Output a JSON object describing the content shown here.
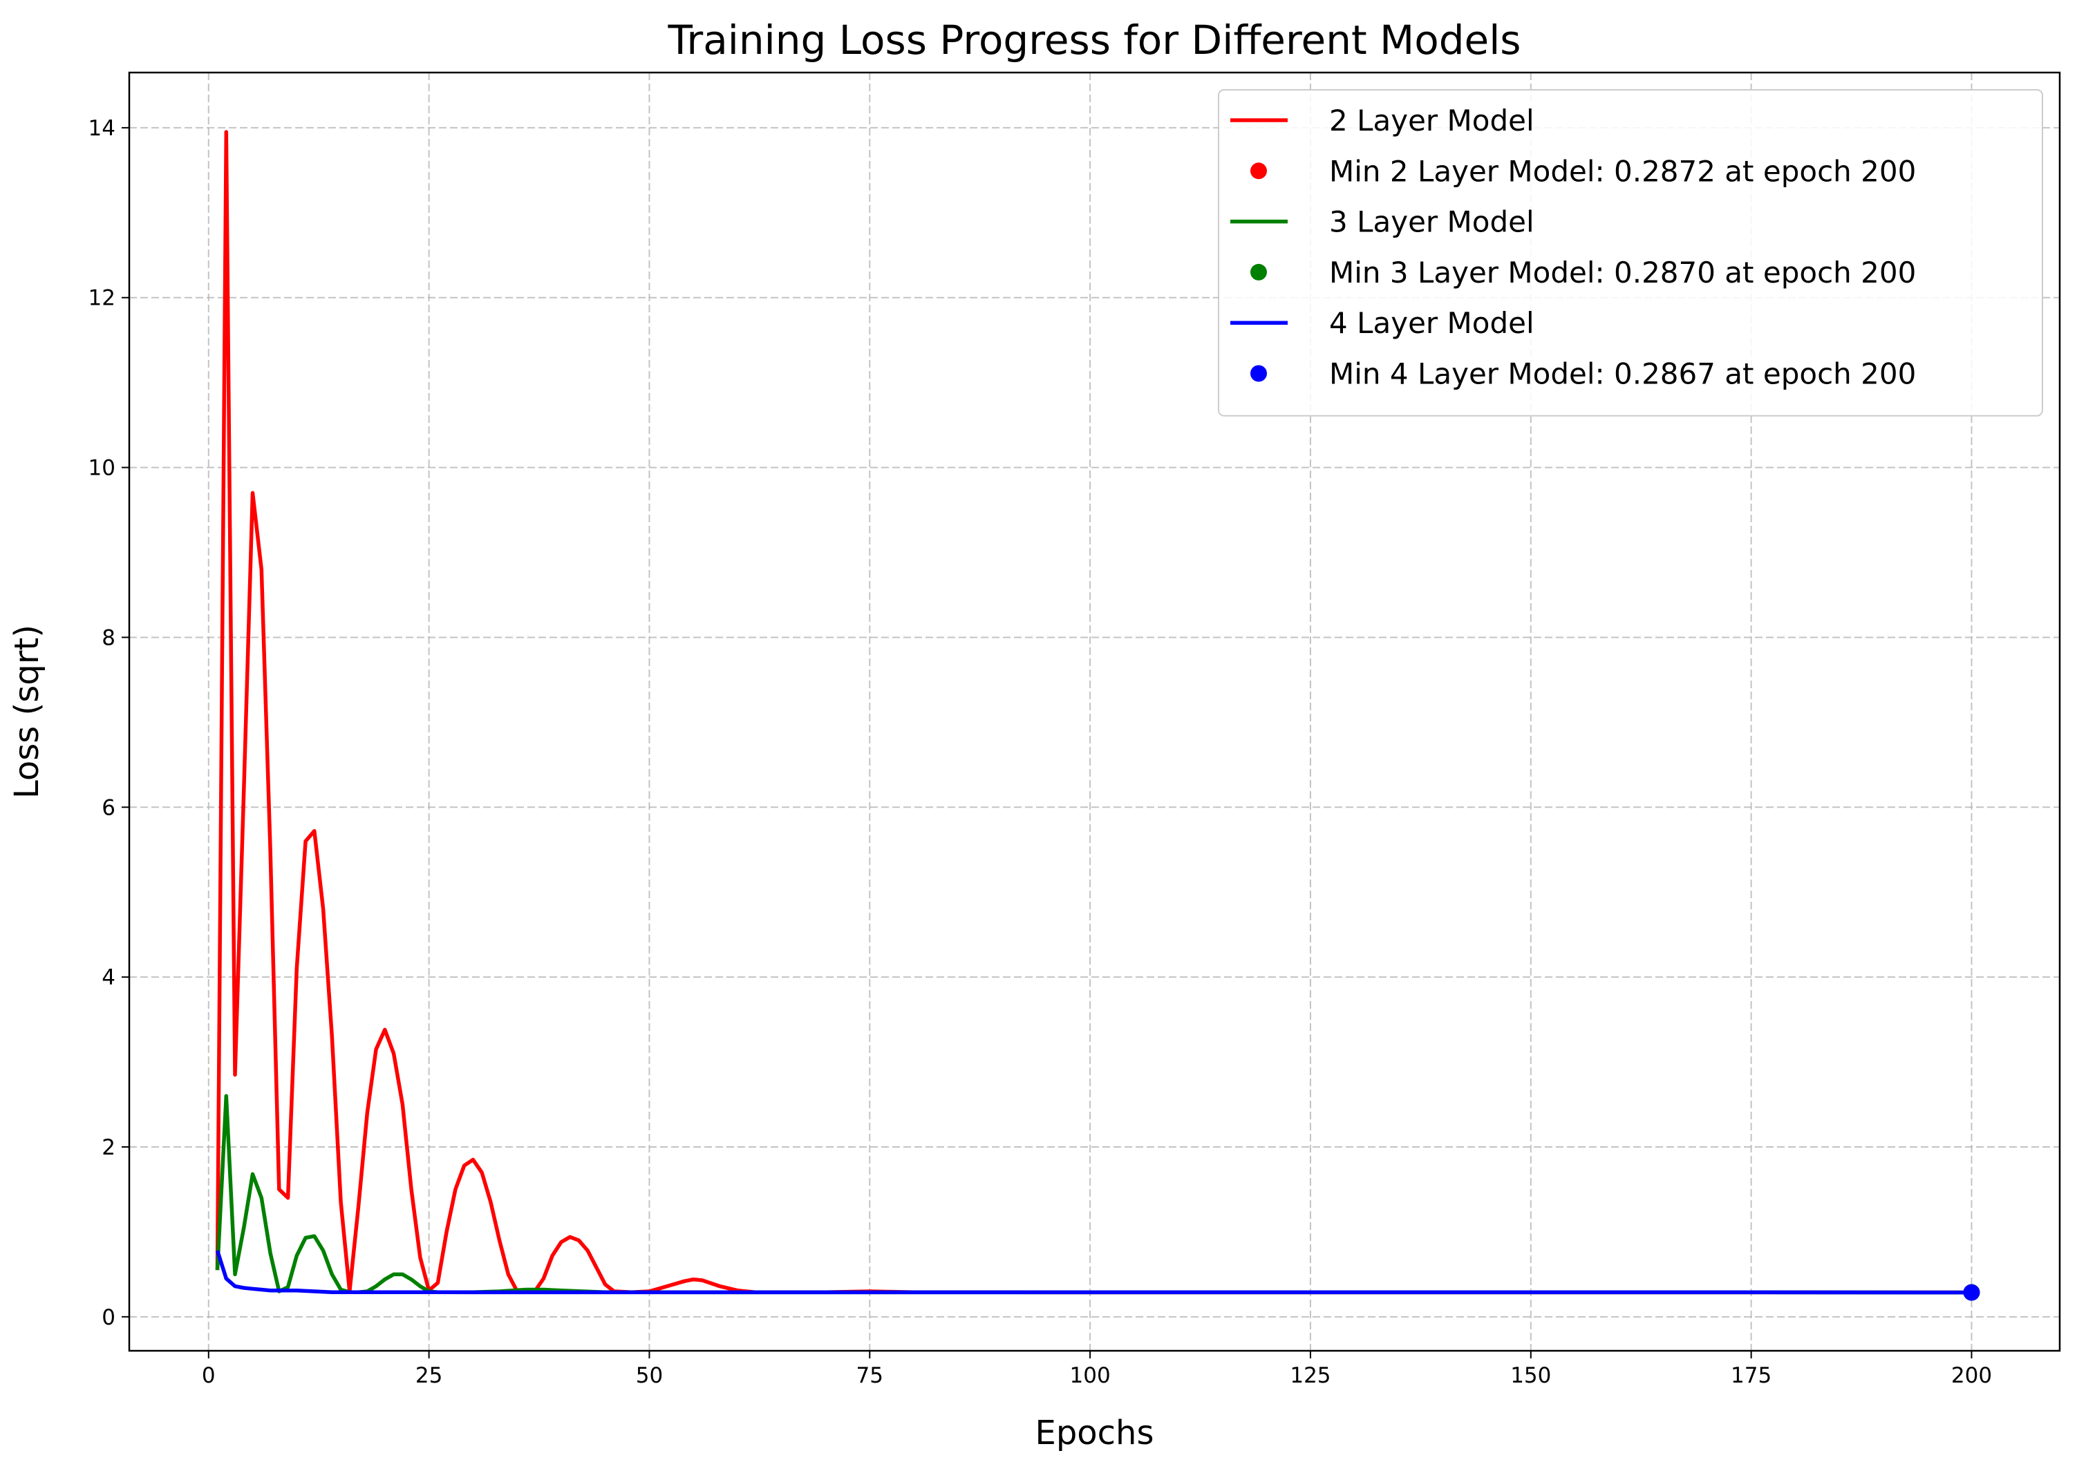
{
  "chart_data": {
    "type": "line",
    "title": "Training Loss Progress for Different Models",
    "xlabel": "Epochs",
    "ylabel": "Loss (sqrt)",
    "xlim": [
      -9,
      210
    ],
    "ylim": [
      -0.4,
      14.65
    ],
    "xticks": [
      0,
      25,
      50,
      75,
      100,
      125,
      150,
      175,
      200
    ],
    "yticks": [
      0,
      2,
      4,
      6,
      8,
      10,
      12,
      14
    ],
    "grid": true,
    "legend_position": "top-right",
    "series": [
      {
        "name": "2 Layer Model",
        "color": "#ff0000",
        "x": [
          1,
          2,
          3,
          4,
          5,
          6,
          7,
          8,
          9,
          10,
          11,
          12,
          13,
          14,
          15,
          16,
          17,
          18,
          19,
          20,
          21,
          22,
          23,
          24,
          25,
          26,
          27,
          28,
          29,
          30,
          31,
          32,
          33,
          34,
          35,
          36,
          37,
          38,
          39,
          40,
          41,
          42,
          43,
          44,
          45,
          46,
          48,
          50,
          52,
          54,
          55,
          56,
          58,
          60,
          62,
          65,
          70,
          75,
          80,
          90,
          100,
          125,
          150,
          175,
          200
        ],
        "y": [
          0.55,
          13.95,
          2.85,
          6.2,
          9.7,
          8.8,
          5.5,
          1.5,
          1.4,
          4.1,
          5.6,
          5.72,
          4.8,
          3.3,
          1.35,
          0.3,
          1.3,
          2.4,
          3.15,
          3.38,
          3.1,
          2.5,
          1.5,
          0.7,
          0.31,
          0.4,
          1.0,
          1.5,
          1.78,
          1.85,
          1.7,
          1.35,
          0.9,
          0.5,
          0.3,
          0.29,
          0.3,
          0.45,
          0.72,
          0.88,
          0.94,
          0.9,
          0.78,
          0.58,
          0.38,
          0.3,
          0.29,
          0.3,
          0.36,
          0.42,
          0.44,
          0.43,
          0.36,
          0.31,
          0.29,
          0.29,
          0.29,
          0.3,
          0.29,
          0.29,
          0.288,
          0.288,
          0.288,
          0.288,
          0.2872
        ]
      },
      {
        "name": "3 Layer Model",
        "color": "#008000",
        "x": [
          1,
          2,
          3,
          4,
          5,
          6,
          7,
          8,
          9,
          10,
          11,
          12,
          13,
          14,
          15,
          16,
          17,
          18,
          19,
          20,
          21,
          22,
          23,
          24,
          25,
          26,
          28,
          30,
          33,
          36,
          38,
          40,
          45,
          50,
          60,
          75,
          100,
          125,
          150,
          175,
          200
        ],
        "y": [
          0.55,
          2.6,
          0.5,
          1.05,
          1.68,
          1.4,
          0.75,
          0.3,
          0.35,
          0.72,
          0.93,
          0.95,
          0.78,
          0.5,
          0.32,
          0.29,
          0.29,
          0.3,
          0.36,
          0.44,
          0.5,
          0.5,
          0.44,
          0.36,
          0.3,
          0.29,
          0.29,
          0.29,
          0.3,
          0.32,
          0.32,
          0.31,
          0.29,
          0.29,
          0.288,
          0.288,
          0.288,
          0.288,
          0.288,
          0.288,
          0.287
        ]
      },
      {
        "name": "4 Layer Model",
        "color": "#0000ff",
        "x": [
          1,
          2,
          3,
          4,
          5,
          6,
          7,
          8,
          9,
          10,
          12,
          14,
          16,
          20,
          25,
          30,
          40,
          50,
          75,
          100,
          125,
          150,
          175,
          200
        ],
        "y": [
          0.78,
          0.45,
          0.36,
          0.34,
          0.33,
          0.32,
          0.31,
          0.31,
          0.31,
          0.31,
          0.3,
          0.29,
          0.29,
          0.29,
          0.29,
          0.288,
          0.288,
          0.288,
          0.288,
          0.288,
          0.288,
          0.288,
          0.288,
          0.2867
        ]
      }
    ],
    "min_markers": [
      {
        "label": "Min 2 Layer Model: 0.2872 at epoch 200",
        "color": "#ff0000",
        "x": 200,
        "y": 0.2872
      },
      {
        "label": "Min 3 Layer Model: 0.2870 at epoch 200",
        "color": "#008000",
        "x": 200,
        "y": 0.287
      },
      {
        "label": "Min 4 Layer Model: 0.2867 at epoch 200",
        "color": "#0000ff",
        "x": 200,
        "y": 0.2867
      }
    ]
  }
}
